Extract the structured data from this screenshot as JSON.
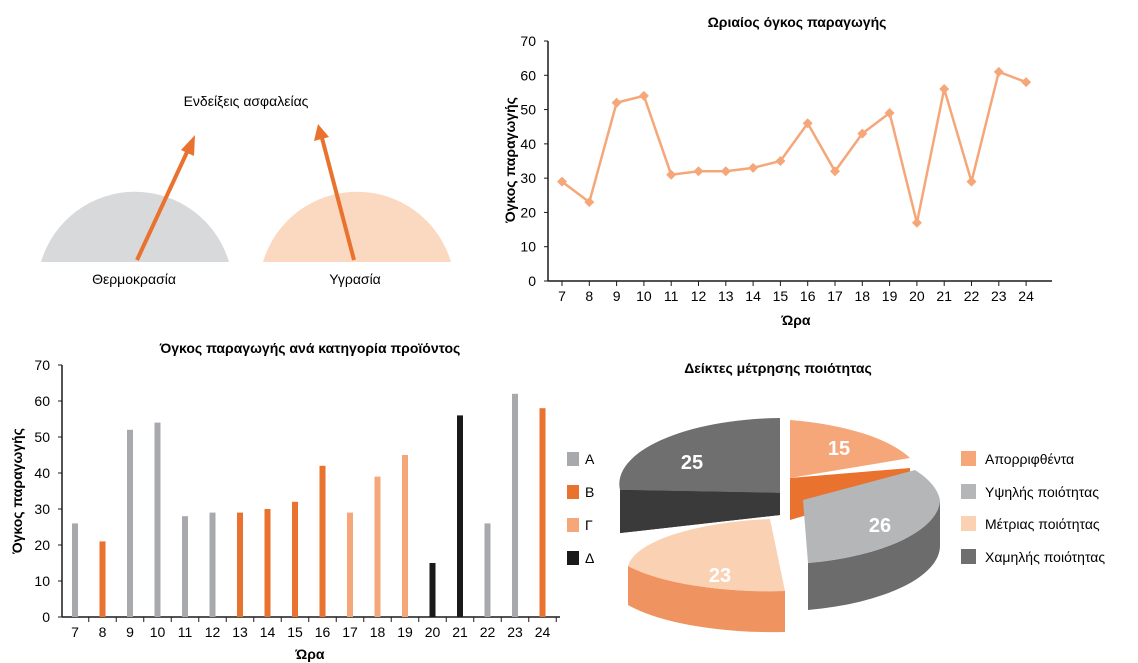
{
  "colors": {
    "A": "#a7a9ac",
    "B": "#e9722e",
    "C": "#f5a77a",
    "D": "#1a1a1a",
    "gauge_grey": "#d8d9db",
    "gauge_peach": "#fbd8c0",
    "line": "#f5a77a",
    "arrow": "#e9722e"
  },
  "chart_data": [
    {
      "type": "gauge",
      "title": "Ενδείξεις ασφαλείας",
      "gauges": [
        {
          "label": "Θερμοκρασία",
          "color": "gauge_grey"
        },
        {
          "label": "Υγρασία",
          "color": "gauge_peach"
        }
      ]
    },
    {
      "type": "line",
      "title": "Ωριαίος όγκος παραγωγής",
      "xlabel": "Ώρα",
      "ylabel": "Όγκος παραγωγής",
      "ylim": [
        0,
        70
      ],
      "yticks": [
        0,
        10,
        20,
        30,
        40,
        50,
        60,
        70
      ],
      "categories": [
        "7",
        "8",
        "9",
        "10",
        "11",
        "12",
        "13",
        "14",
        "15",
        "16",
        "17",
        "18",
        "19",
        "20",
        "21",
        "22",
        "23",
        "24"
      ],
      "values": [
        29,
        23,
        52,
        54,
        31,
        32,
        32,
        33,
        35,
        46,
        32,
        43,
        49,
        17,
        56,
        29,
        61,
        58
      ]
    },
    {
      "type": "bar",
      "title": "Όγκος παραγωγής ανά κατηγορία προϊόντος",
      "xlabel": "Ώρα",
      "ylabel": "Όγκος παραγωγής",
      "ylim": [
        0,
        70
      ],
      "yticks": [
        0,
        10,
        20,
        30,
        40,
        50,
        60,
        70
      ],
      "legend_position": "right",
      "categories": [
        "7",
        "8",
        "9",
        "10",
        "11",
        "12",
        "13",
        "14",
        "15",
        "16",
        "17",
        "18",
        "19",
        "20",
        "21",
        "22",
        "23",
        "24"
      ],
      "legend": [
        {
          "name": "Α",
          "color": "A"
        },
        {
          "name": "Β",
          "color": "B"
        },
        {
          "name": "Γ",
          "color": "C"
        },
        {
          "name": "Δ",
          "color": "D"
        }
      ],
      "bars": [
        {
          "category": "7",
          "series": "Α",
          "value": 26
        },
        {
          "category": "8",
          "series": "Β",
          "value": 21
        },
        {
          "category": "9",
          "series": "Α",
          "value": 52
        },
        {
          "category": "10",
          "series": "Α",
          "value": 54
        },
        {
          "category": "11",
          "series": "Α",
          "value": 28
        },
        {
          "category": "12",
          "series": "Α",
          "value": 29
        },
        {
          "category": "13",
          "series": "Β",
          "value": 29
        },
        {
          "category": "14",
          "series": "Β",
          "value": 30
        },
        {
          "category": "15",
          "series": "Β",
          "value": 32
        },
        {
          "category": "16",
          "series": "Β",
          "value": 42
        },
        {
          "category": "17",
          "series": "Γ",
          "value": 29
        },
        {
          "category": "18",
          "series": "Γ",
          "value": 39
        },
        {
          "category": "19",
          "series": "Γ",
          "value": 45
        },
        {
          "category": "20",
          "series": "Δ",
          "value": 15
        },
        {
          "category": "21",
          "series": "Δ",
          "value": 56
        },
        {
          "category": "22",
          "series": "Α",
          "value": 26
        },
        {
          "category": "23",
          "series": "Α",
          "value": 62
        },
        {
          "category": "24",
          "series": "Β",
          "value": 58
        }
      ]
    },
    {
      "type": "pie",
      "title": "Δείκτες μέτρησης ποιότητας",
      "legend_position": "right",
      "slices": [
        {
          "label": "Απορριφθέντα",
          "value": 15
        },
        {
          "label": "Υψηλής ποιότητας",
          "value": 26
        },
        {
          "label": "Μέτριας ποιότητας",
          "value": 23
        },
        {
          "label": "Χαμηλής ποιότητας",
          "value": 25
        }
      ]
    }
  ]
}
